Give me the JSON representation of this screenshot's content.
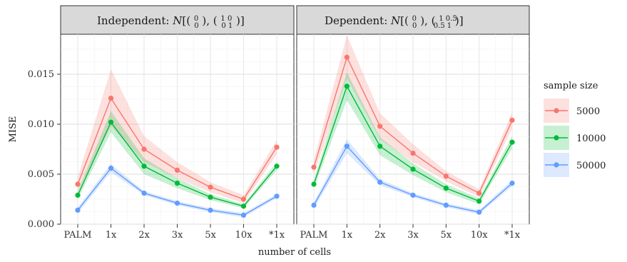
{
  "chart_data": {
    "type": "line",
    "xlabel": "number of cells",
    "ylabel": "MISE",
    "x": [
      "PALM",
      "1x",
      "2x",
      "3x",
      "5x",
      "10x",
      "*1x"
    ],
    "ylim": [
      0,
      0.019
    ],
    "yticks": [
      0.0,
      0.005,
      0.01,
      0.015
    ],
    "ytick_labels": [
      "0.000",
      "0.005",
      "0.010",
      "0.015"
    ],
    "grid": true,
    "legend": {
      "title": "sample size",
      "placement": "right",
      "entries": [
        {
          "label": "5000",
          "color": "#F8766D"
        },
        {
          "label": "10000",
          "color": "#00BA38"
        },
        {
          "label": "50000",
          "color": "#619CFF"
        }
      ]
    },
    "panels": [
      {
        "title": "Independent: N[(0 0), (1 0 0 1)]",
        "strip_label": "Independent:",
        "series": [
          {
            "name": "5000",
            "values": [
              0.004,
              0.0126,
              0.0075,
              0.0054,
              0.0037,
              0.0025,
              0.0077
            ],
            "lower": [
              0.0033,
              0.0098,
              0.0062,
              0.0046,
              0.0032,
              0.0021,
              0.007
            ],
            "upper": [
              0.0047,
              0.0155,
              0.0088,
              0.0062,
              0.0042,
              0.0029,
              0.0084
            ]
          },
          {
            "name": "10000",
            "values": [
              0.0029,
              0.0102,
              0.0058,
              0.0041,
              0.0027,
              0.0018,
              0.0058
            ],
            "lower": [
              0.0025,
              0.0092,
              0.005,
              0.0036,
              0.0024,
              0.0016,
              0.0054
            ],
            "upper": [
              0.0033,
              0.0113,
              0.0066,
              0.0046,
              0.003,
              0.002,
              0.0062
            ]
          },
          {
            "name": "50000",
            "values": [
              0.0014,
              0.0056,
              0.0031,
              0.0021,
              0.0014,
              0.0009,
              0.0028
            ],
            "lower": [
              0.0011,
              0.0052,
              0.0029,
              0.0019,
              0.0012,
              0.0007,
              0.0026
            ],
            "upper": [
              0.0017,
              0.006,
              0.0033,
              0.0023,
              0.0016,
              0.0011,
              0.003
            ]
          }
        ]
      },
      {
        "title": "Dependent: N[(0 0), (1 0.5 0.5 1)]",
        "strip_label": "Dependent:",
        "series": [
          {
            "name": "5000",
            "values": [
              0.0057,
              0.0167,
              0.0098,
              0.0071,
              0.0048,
              0.0031,
              0.0104
            ],
            "lower": [
              0.005,
              0.0146,
              0.0085,
              0.0062,
              0.0043,
              0.0027,
              0.0096
            ],
            "upper": [
              0.0064,
              0.0189,
              0.0111,
              0.008,
              0.0053,
              0.0035,
              0.0112
            ]
          },
          {
            "name": "10000",
            "values": [
              0.004,
              0.0138,
              0.0078,
              0.0055,
              0.0036,
              0.0023,
              0.0082
            ],
            "lower": [
              0.0036,
              0.0124,
              0.0069,
              0.0049,
              0.0032,
              0.002,
              0.0076
            ],
            "upper": [
              0.0044,
              0.0152,
              0.0087,
              0.0061,
              0.004,
              0.0026,
              0.0088
            ]
          },
          {
            "name": "50000",
            "values": [
              0.0019,
              0.0078,
              0.0042,
              0.0029,
              0.0019,
              0.0012,
              0.0041
            ],
            "lower": [
              0.0016,
              0.0071,
              0.0039,
              0.0027,
              0.0017,
              0.001,
              0.0038
            ],
            "upper": [
              0.0022,
              0.0085,
              0.0045,
              0.0031,
              0.0021,
              0.0014,
              0.0044
            ]
          }
        ]
      }
    ]
  }
}
